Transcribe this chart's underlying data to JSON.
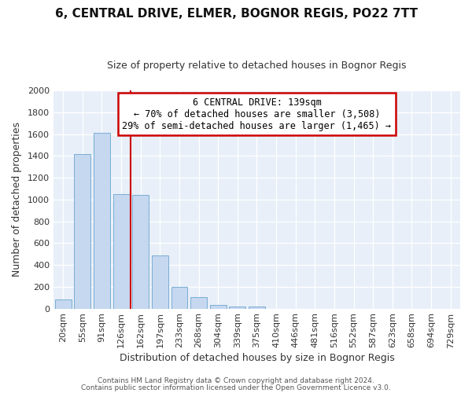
{
  "title": "6, CENTRAL DRIVE, ELMER, BOGNOR REGIS, PO22 7TT",
  "subtitle": "Size of property relative to detached houses in Bognor Regis",
  "xlabel": "Distribution of detached houses by size in Bognor Regis",
  "ylabel": "Number of detached properties",
  "categories": [
    "20sqm",
    "55sqm",
    "91sqm",
    "126sqm",
    "162sqm",
    "197sqm",
    "233sqm",
    "268sqm",
    "304sqm",
    "339sqm",
    "375sqm",
    "410sqm",
    "446sqm",
    "481sqm",
    "516sqm",
    "552sqm",
    "587sqm",
    "623sqm",
    "658sqm",
    "694sqm",
    "729sqm"
  ],
  "values": [
    80,
    1420,
    1610,
    1050,
    1040,
    490,
    200,
    105,
    35,
    22,
    18,
    0,
    0,
    0,
    0,
    0,
    0,
    0,
    0,
    0,
    0
  ],
  "bar_color": "#c5d8f0",
  "bar_edge_color": "#7aadd4",
  "background_color": "#e8eff8",
  "fig_background_color": "#ffffff",
  "grid_color": "#ffffff",
  "red_line_x": 3.5,
  "annotation_title": "6 CENTRAL DRIVE: 139sqm",
  "annotation_line1": "← 70% of detached houses are smaller (3,508)",
  "annotation_line2": "29% of semi-detached houses are larger (1,465) →",
  "annotation_box_color": "#cc0000",
  "ylim": [
    0,
    2000
  ],
  "yticks": [
    0,
    200,
    400,
    600,
    800,
    1000,
    1200,
    1400,
    1600,
    1800,
    2000
  ],
  "title_fontsize": 11,
  "subtitle_fontsize": 9,
  "xlabel_fontsize": 9,
  "ylabel_fontsize": 9,
  "tick_fontsize": 8,
  "footer_line1": "Contains HM Land Registry data © Crown copyright and database right 2024.",
  "footer_line2": "Contains public sector information licensed under the Open Government Licence v3.0."
}
